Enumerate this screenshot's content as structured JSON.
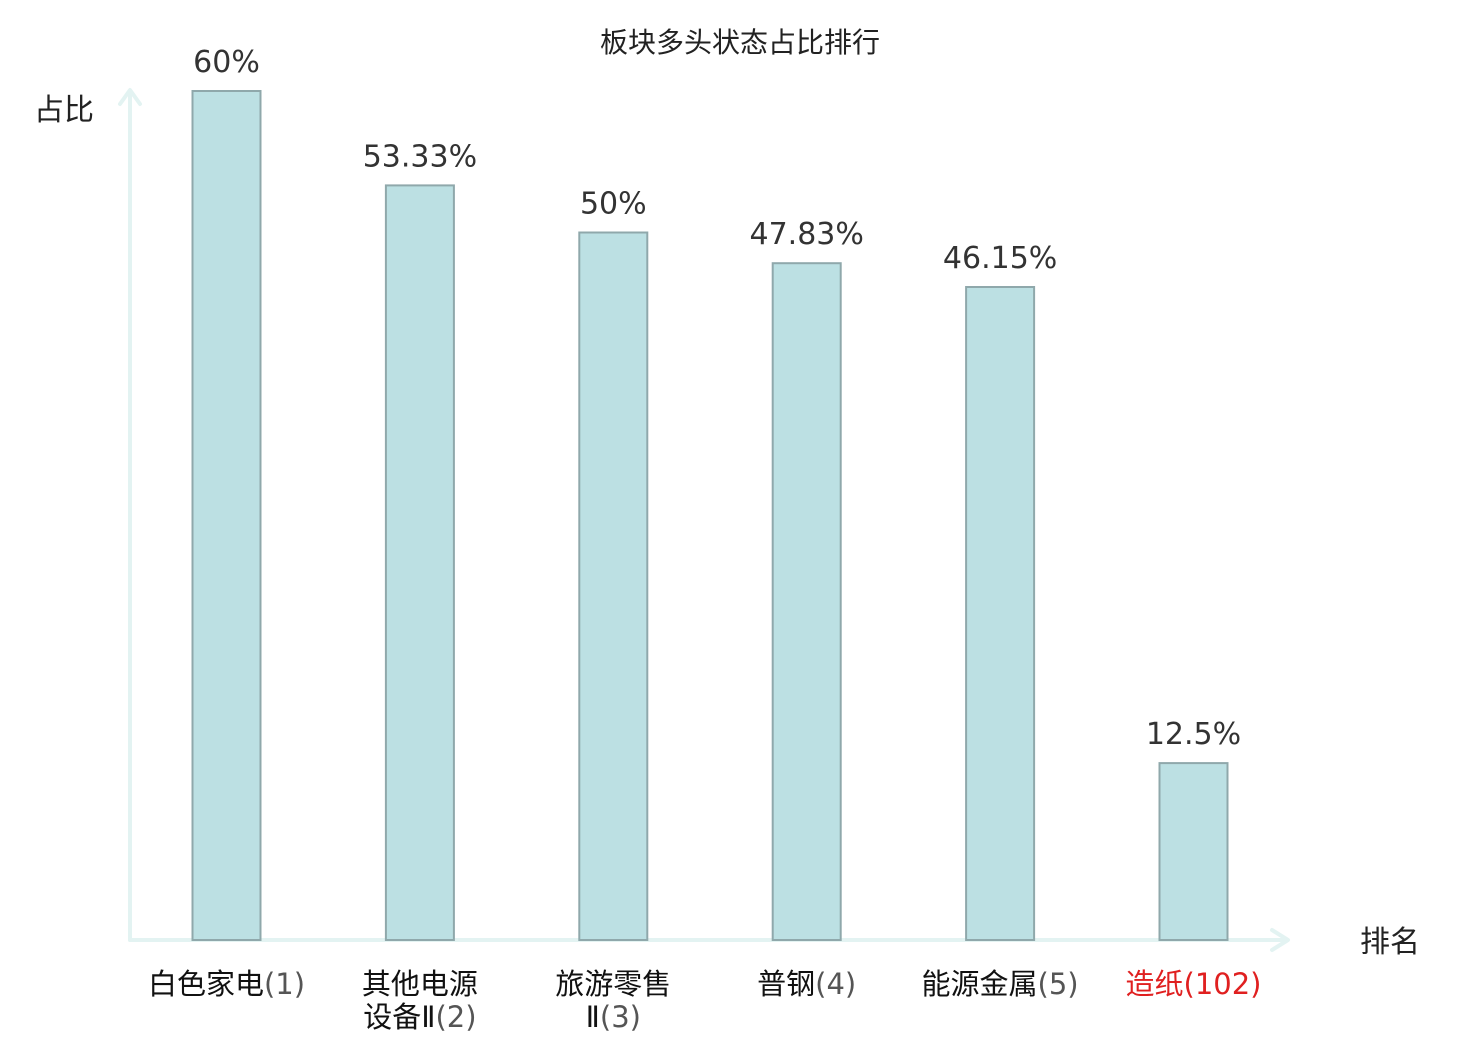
{
  "chart_data": {
    "type": "bar",
    "title": "板块多头状态占比排行",
    "xlabel": "排名",
    "ylabel": "占比",
    "ylim": [
      0,
      60
    ],
    "grid": false,
    "categories": [
      {
        "name_lines": [
          "白色家电"
        ],
        "rank": "(1)",
        "highlight": false
      },
      {
        "name_lines": [
          "其他电源",
          "设备Ⅱ"
        ],
        "rank": "(2)",
        "highlight": false
      },
      {
        "name_lines": [
          "旅游零售",
          "Ⅱ"
        ],
        "rank": "(3)",
        "highlight": false
      },
      {
        "name_lines": [
          "普钢"
        ],
        "rank": "(4)",
        "highlight": false
      },
      {
        "name_lines": [
          "能源金属"
        ],
        "rank": "(5)",
        "highlight": false
      },
      {
        "name_lines": [
          "造纸"
        ],
        "rank": "(102)",
        "highlight": true
      }
    ],
    "values": [
      60,
      53.33,
      50,
      47.83,
      46.15,
      12.5
    ],
    "value_labels": [
      "60%",
      "53.33%",
      "50%",
      "47.83%",
      "46.15%",
      "12.5%"
    ],
    "colors": {
      "bar_fill": "#bce0e3",
      "bar_stroke": "#8fa8ab",
      "axis": "#e3f3f2",
      "highlight_text": "#e02020"
    }
  }
}
